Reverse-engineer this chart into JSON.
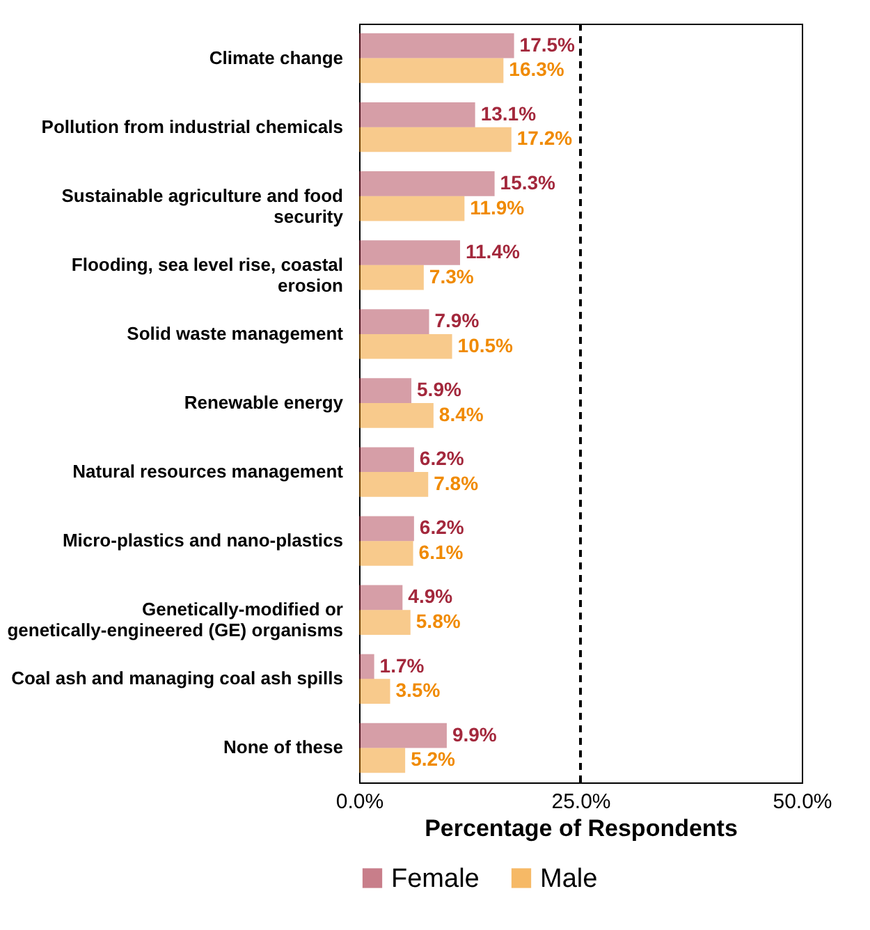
{
  "chart_data": {
    "type": "bar",
    "orientation": "horizontal",
    "xlabel": "Percentage of Respondents",
    "categories": [
      "Climate change",
      "Pollution from industrial chemicals",
      "Sustainable agriculture and food security",
      "Flooding, sea level rise, coastal erosion",
      "Solid waste management",
      "Renewable energy",
      "Natural resources management",
      "Micro-plastics and nano-plastics",
      "Genetically-modified or genetically-engineered (GE) organisms",
      "Coal ash and managing coal ash spills",
      "None of these"
    ],
    "series": [
      {
        "name": "Female",
        "color": "#a3283c",
        "values": [
          17.5,
          13.1,
          15.3,
          11.4,
          7.9,
          5.9,
          6.2,
          6.2,
          4.9,
          1.7,
          9.9
        ],
        "value_labels": [
          "17.5%",
          "13.1%",
          "15.3%",
          "11.4%",
          "7.9%",
          "5.9%",
          "6.2%",
          "6.2%",
          "4.9%",
          "1.7%",
          "9.9%"
        ]
      },
      {
        "name": "Male",
        "color": "#f08a00",
        "values": [
          16.3,
          17.2,
          11.9,
          7.3,
          10.5,
          8.4,
          7.8,
          6.1,
          5.8,
          3.5,
          5.2
        ],
        "value_labels": [
          "16.3%",
          "17.2%",
          "11.9%",
          "7.3%",
          "10.5%",
          "8.4%",
          "7.8%",
          "6.1%",
          "5.8%",
          "3.5%",
          "5.2%"
        ]
      }
    ],
    "xlim": [
      0,
      50
    ],
    "xticks": [
      {
        "value": 0,
        "label": "0.0%"
      },
      {
        "value": 25,
        "label": "25.0%"
      },
      {
        "value": 50,
        "label": "50.0%"
      }
    ],
    "ref_lines": [
      {
        "axis": "x",
        "value": 25,
        "color": "#000000",
        "line_style": "dashed"
      }
    ],
    "grid": false,
    "legend": "bottom"
  }
}
